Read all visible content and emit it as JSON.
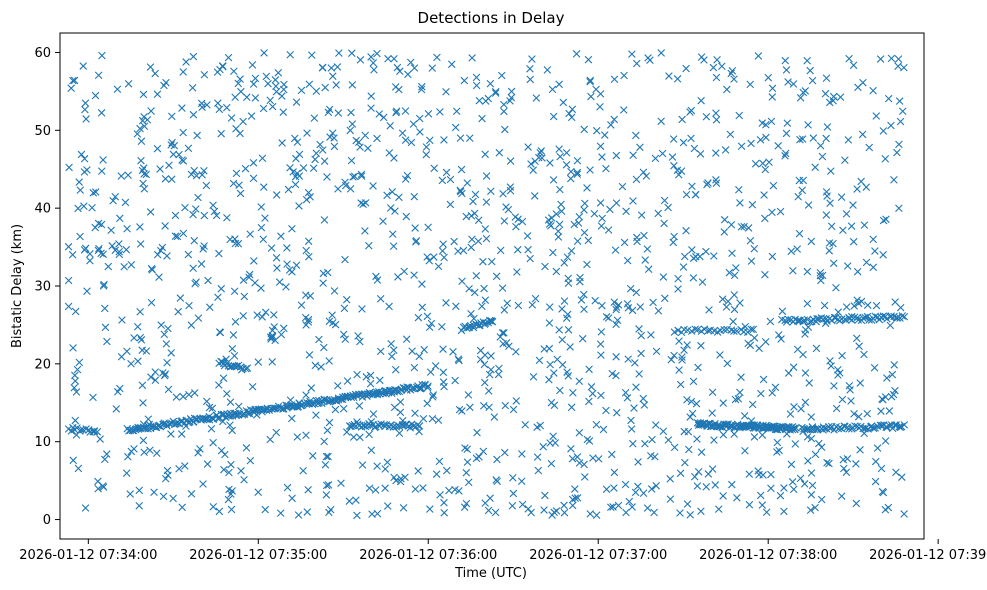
{
  "chart_data": {
    "type": "scatter",
    "title": "Detections in Delay",
    "xlabel": "Time (UTC)",
    "ylabel": "Bistatic Delay (km)",
    "xlim": [
      "2026-01-12 07:33:50",
      "2026-01-12 07:38:55"
    ],
    "ylim": [
      -2.5,
      62.5
    ],
    "xticks": [
      "2026-01-12 07:34:00",
      "2026-01-12 07:35:00",
      "2026-01-12 07:36:00",
      "2026-01-12 07:37:00",
      "2026-01-12 07:38:00",
      "2026-01-12 07:39:00"
    ],
    "yticks": [
      0,
      10,
      20,
      30,
      40,
      50,
      60
    ],
    "marker": "x",
    "color": "#1f77b4",
    "grid": false,
    "tracks": [
      {
        "t_start": "2026-01-12 07:33:53",
        "t_end": "2026-01-12 07:34:03",
        "delay_start": 11.6,
        "delay_end": 11.4,
        "points": 14
      },
      {
        "t_start": "2026-01-12 07:34:14",
        "t_end": "2026-01-12 07:36:00",
        "delay_start": 11.5,
        "delay_end": 17.2,
        "points": 220
      },
      {
        "t_start": "2026-01-12 07:34:46",
        "t_end": "2026-01-12 07:34:56",
        "delay_start": 20.2,
        "delay_end": 19.3,
        "points": 18
      },
      {
        "t_start": "2026-01-12 07:35:32",
        "t_end": "2026-01-12 07:35:57",
        "delay_start": 12.1,
        "delay_end": 12.0,
        "points": 40
      },
      {
        "t_start": "2026-01-12 07:36:12",
        "t_end": "2026-01-12 07:36:23",
        "delay_start": 24.5,
        "delay_end": 25.5,
        "points": 22
      },
      {
        "t_start": "2026-01-12 07:37:27",
        "t_end": "2026-01-12 07:37:55",
        "delay_start": 24.2,
        "delay_end": 24.3,
        "points": 25
      },
      {
        "t_start": "2026-01-12 07:37:35",
        "t_end": "2026-01-12 07:38:10",
        "delay_start": 12.2,
        "delay_end": 11.7,
        "points": 110
      },
      {
        "t_start": "2026-01-12 07:38:05",
        "t_end": "2026-01-12 07:38:48",
        "delay_start": 25.5,
        "delay_end": 26.0,
        "points": 60
      },
      {
        "t_start": "2026-01-12 07:38:12",
        "t_end": "2026-01-12 07:38:48",
        "delay_start": 11.6,
        "delay_end": 12.0,
        "points": 55
      }
    ],
    "background_clutter": {
      "t_range": [
        "2026-01-12 07:33:53",
        "2026-01-12 07:38:48"
      ],
      "delay_range": [
        0.5,
        60
      ],
      "points": 1500
    }
  }
}
